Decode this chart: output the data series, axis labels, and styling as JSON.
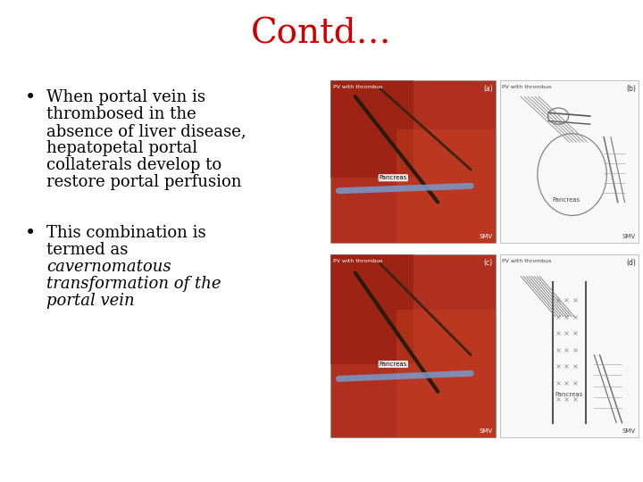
{
  "title": "Contd…",
  "title_color": "#cc0000",
  "title_fontsize": 28,
  "background_color": "#ffffff",
  "bullet1_lines": [
    "When portal vein is",
    "thrombosed in the",
    "absence of liver disease,",
    "hepatopetal portal",
    "collaterals develop to",
    "restore portal perfusion"
  ],
  "bullet2_lines": [
    "This combination is",
    "termed as"
  ],
  "bullet2_italic_lines": [
    "cavernomatous",
    "transformation of the",
    "portal vein"
  ],
  "bullet_fontsize": 13,
  "bullet_color": "#000000",
  "figsize": [
    7.2,
    5.4
  ],
  "dpi": 100,
  "img_photo_color": "#c0392b",
  "img_photo_color2": "#a93226",
  "img_diagram_color": "#f0f0f0",
  "img_label_color_photo": "#ffffff",
  "img_label_color_diagram": "#000000"
}
